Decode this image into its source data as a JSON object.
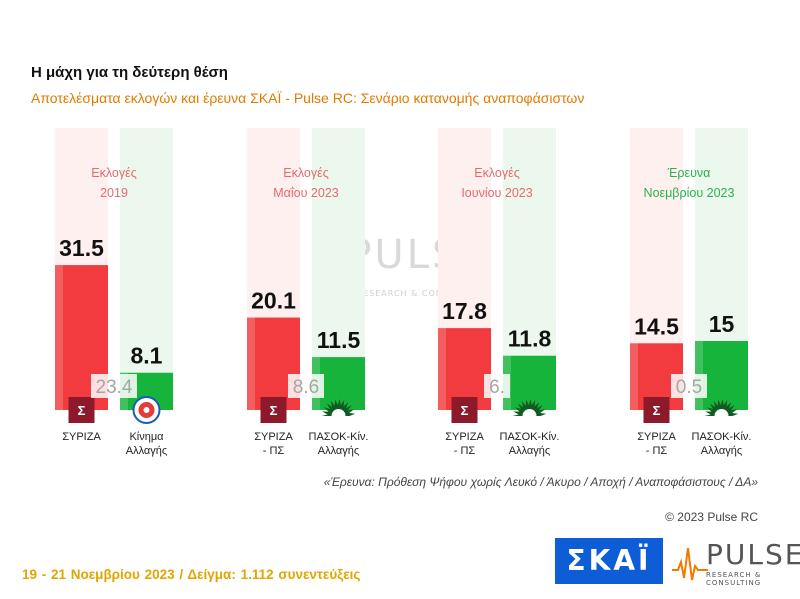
{
  "header": {
    "title": "Η μάχη για τη δεύτερη θέση",
    "subtitle": "Αποτελέσματα εκλογών και έρευνα ΣΚΑΪ - Pulse RC: Σενάριο κατανομής αναποφάσιστων"
  },
  "watermark": {
    "word": "PULSE",
    "sub": "RESEARCH & CONSULTING"
  },
  "chart_data": {
    "type": "bar",
    "groups": [
      {
        "label_lines": [
          "Εκλογές",
          "2019"
        ],
        "label_color": "#e8696a",
        "gap": "23.4",
        "bars": [
          {
            "party": "ΣΥΡΙΖΑ",
            "value": 31.5,
            "value_label": "31.5",
            "color": "#f23b3f",
            "party_lines": [
              "ΣΥΡΙΖΑ"
            ],
            "icon": "syriza-logo-icon"
          },
          {
            "party": "Κίνημα Αλλαγής",
            "value": 8.1,
            "value_label": "8.1",
            "color": "#16b43a",
            "party_lines": [
              "Κίνημα",
              "Αλλαγής"
            ],
            "icon": "kinal-logo-icon"
          }
        ]
      },
      {
        "label_lines": [
          "Εκλογές",
          "Μαΐου 2023"
        ],
        "label_color": "#e8696a",
        "gap": "8.6",
        "bars": [
          {
            "party": "ΣΥΡΙΖΑ - ΠΣ",
            "value": 20.1,
            "value_label": "20.1",
            "color": "#f23b3f",
            "party_lines": [
              "ΣΥΡΙΖΑ",
              "- ΠΣ"
            ],
            "icon": "syriza-logo-icon"
          },
          {
            "party": "ΠΑΣΟΚ-Κίν. Αλλαγής",
            "value": 11.5,
            "value_label": "11.5",
            "color": "#16b43a",
            "party_lines": [
              "ΠΑΣΟΚ-Κίν.",
              "Αλλαγής"
            ],
            "icon": "pasok-sun-icon"
          }
        ]
      },
      {
        "label_lines": [
          "Εκλογές",
          "Ιουνίου 2023"
        ],
        "label_color": "#e8696a",
        "gap": "6.",
        "bars": [
          {
            "party": "ΣΥΡΙΖΑ - ΠΣ",
            "value": 17.8,
            "value_label": "17.8",
            "color": "#f23b3f",
            "party_lines": [
              "ΣΥΡΙΖΑ",
              "- ΠΣ"
            ],
            "icon": "syriza-logo-icon"
          },
          {
            "party": "ΠΑΣΟΚ-Κίν. Αλλαγής",
            "value": 11.8,
            "value_label": "11.8",
            "color": "#16b43a",
            "party_lines": [
              "ΠΑΣΟΚ-Κίν.",
              "Αλλαγής"
            ],
            "icon": "pasok-sun-icon"
          }
        ]
      },
      {
        "label_lines": [
          "Έρευνα",
          "Νοεμβρίου 2023"
        ],
        "label_color": "#27b34b",
        "gap": "0.5",
        "bars": [
          {
            "party": "ΣΥΡΙΖΑ - ΠΣ",
            "value": 14.5,
            "value_label": "14.5",
            "color": "#f23b3f",
            "party_lines": [
              "ΣΥΡΙΖΑ",
              "- ΠΣ"
            ],
            "icon": "syriza-logo-icon"
          },
          {
            "party": "ΠΑΣΟΚ-Κίν. Αλλαγής",
            "value": 15,
            "value_label": "15",
            "color": "#16b43a",
            "party_lines": [
              "ΠΑΣΟΚ-Κίν.",
              "Αλλαγής"
            ],
            "icon": "pasok-sun-icon"
          }
        ]
      }
    ],
    "colors": {
      "bg_red": "#fff0f0",
      "bg_green": "#ecf8ee"
    }
  },
  "footnote": "«Έρευνα: Πρόθεση Ψήφου χωρίς Λευκό / Άκυρο / Αποχή / Αναποφάσιστους / ΔΑ»",
  "copyright": "© 2023 Pulse RC",
  "footer": {
    "sample": "19 - 21 Νοεμβρίου 2023 / Δείγμα: 1.112 συνεντεύξεις"
  },
  "logos": {
    "skai": "ΣΚΑΪ",
    "pulse": "PULSE",
    "pulse_sub": "RESEARCH & CONSULTING"
  }
}
